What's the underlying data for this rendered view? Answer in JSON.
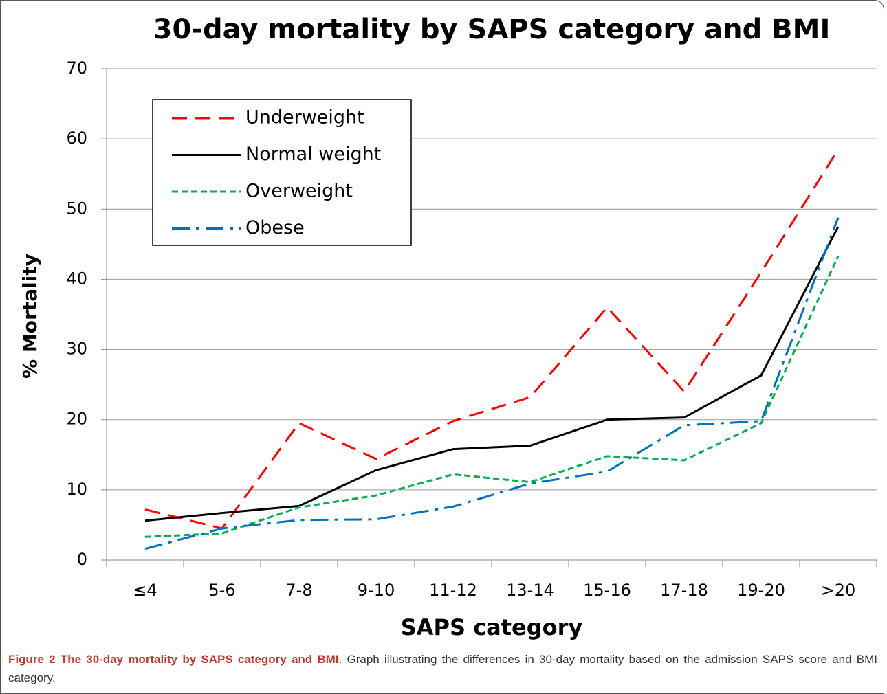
{
  "chart_data": {
    "type": "line",
    "title": "30-day mortality by SAPS category and BMI",
    "x_label": "SAPS category",
    "y_label": "% Mortality",
    "categories": [
      "≤4",
      "5-6",
      "7-8",
      "9-10",
      "11-12",
      "13-14",
      "15-16",
      "17-18",
      "19-20",
      ">20"
    ],
    "series": [
      {
        "name": "Underweight",
        "color": "#ff0000",
        "style": "dashed",
        "values": [
          7.2,
          4.5,
          19.5,
          14.4,
          19.8,
          23.2,
          36.0,
          24.0,
          41.0,
          58.5
        ]
      },
      {
        "name": "Normal weight",
        "color": "#000000",
        "style": "solid",
        "values": [
          5.6,
          6.7,
          7.7,
          12.8,
          15.8,
          16.3,
          20.0,
          20.3,
          26.3,
          47.5
        ]
      },
      {
        "name": "Overweight",
        "color": "#00b050",
        "style": "dotted",
        "values": [
          3.3,
          3.8,
          7.5,
          9.2,
          12.2,
          11.1,
          14.8,
          14.2,
          19.5,
          43.3
        ]
      },
      {
        "name": "Obese",
        "color": "#0070c0",
        "style": "dashdot",
        "values": [
          1.6,
          4.5,
          5.7,
          5.8,
          7.6,
          10.9,
          12.6,
          19.2,
          19.8,
          48.8
        ]
      }
    ],
    "ylim": [
      0,
      70
    ],
    "yticks": [
      0,
      10,
      20,
      30,
      40,
      50,
      60,
      70
    ],
    "grid": true,
    "legend": "upper left"
  },
  "caption": {
    "label": "Figure 2 The 30-day mortality by SAPS category and BMI",
    "text": ". Graph illustrating the differences in 30-day mortality based on the admission SAPS score and BMI category."
  }
}
